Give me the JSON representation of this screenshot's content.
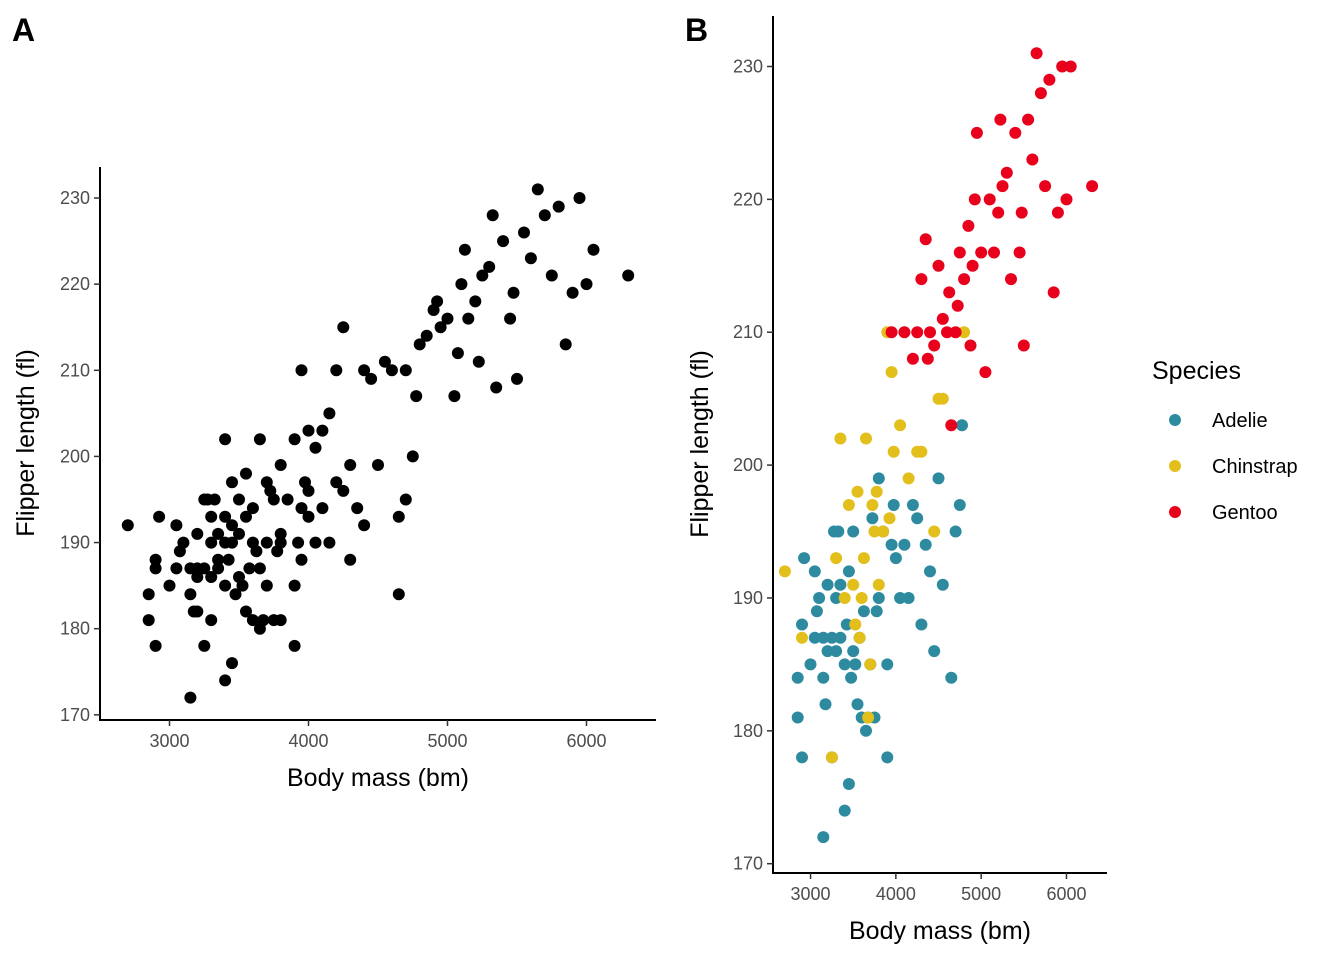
{
  "chart_data": [
    {
      "panel": "A",
      "type": "scatter",
      "xlabel": "Body mass (bm)",
      "ylabel": "Flipper length (fl)",
      "xlim": [
        2500,
        6500
      ],
      "ylim": [
        169.4,
        233.6
      ],
      "xticks": [
        3000,
        4000,
        5000,
        6000
      ],
      "yticks": [
        170,
        180,
        190,
        200,
        210,
        220,
        230
      ],
      "grid": false,
      "color": "#000000",
      "points": [
        [
          2700,
          192
        ],
        [
          2850,
          184
        ],
        [
          2850,
          181
        ],
        [
          2900,
          187
        ],
        [
          2900,
          188
        ],
        [
          2900,
          178
        ],
        [
          2925,
          193
        ],
        [
          3000,
          185
        ],
        [
          3050,
          192
        ],
        [
          3050,
          187
        ],
        [
          3075,
          189
        ],
        [
          3100,
          190
        ],
        [
          3150,
          187
        ],
        [
          3150,
          184
        ],
        [
          3150,
          172
        ],
        [
          3175,
          182
        ],
        [
          3200,
          187
        ],
        [
          3200,
          186
        ],
        [
          3200,
          191
        ],
        [
          3200,
          182
        ],
        [
          3250,
          187
        ],
        [
          3250,
          178
        ],
        [
          3250,
          195
        ],
        [
          3275,
          195
        ],
        [
          3300,
          186
        ],
        [
          3300,
          190
        ],
        [
          3300,
          181
        ],
        [
          3300,
          193
        ],
        [
          3325,
          195
        ],
        [
          3350,
          187
        ],
        [
          3350,
          191
        ],
        [
          3350,
          188
        ],
        [
          3400,
          185
        ],
        [
          3400,
          190
        ],
        [
          3400,
          202
        ],
        [
          3400,
          174
        ],
        [
          3400,
          193
        ],
        [
          3425,
          188
        ],
        [
          3450,
          190
        ],
        [
          3450,
          176
        ],
        [
          3450,
          192
        ],
        [
          3450,
          197
        ],
        [
          3475,
          184
        ],
        [
          3500,
          191
        ],
        [
          3500,
          186
        ],
        [
          3500,
          195
        ],
        [
          3525,
          185
        ],
        [
          3550,
          182
        ],
        [
          3550,
          198
        ],
        [
          3550,
          193
        ],
        [
          3575,
          187
        ],
        [
          3600,
          181
        ],
        [
          3600,
          190
        ],
        [
          3600,
          194
        ],
        [
          3625,
          189
        ],
        [
          3650,
          180
        ],
        [
          3650,
          187
        ],
        [
          3650,
          202
        ],
        [
          3675,
          181
        ],
        [
          3700,
          185
        ],
        [
          3700,
          190
        ],
        [
          3700,
          197
        ],
        [
          3725,
          196
        ],
        [
          3750,
          181
        ],
        [
          3750,
          195
        ],
        [
          3775,
          189
        ],
        [
          3800,
          190
        ],
        [
          3800,
          199
        ],
        [
          3800,
          191
        ],
        [
          3800,
          181
        ],
        [
          3850,
          195
        ],
        [
          3900,
          178
        ],
        [
          3900,
          185
        ],
        [
          3900,
          202
        ],
        [
          3925,
          190
        ],
        [
          3950,
          194
        ],
        [
          3950,
          188
        ],
        [
          3950,
          210
        ],
        [
          3975,
          197
        ],
        [
          4000,
          193
        ],
        [
          4000,
          203
        ],
        [
          4000,
          196
        ],
        [
          4050,
          201
        ],
        [
          4050,
          190
        ],
        [
          4100,
          194
        ],
        [
          4100,
          203
        ],
        [
          4150,
          190
        ],
        [
          4150,
          205
        ],
        [
          4200,
          197
        ],
        [
          4200,
          210
        ],
        [
          4250,
          196
        ],
        [
          4250,
          215
        ],
        [
          4300,
          188
        ],
        [
          4300,
          199
        ],
        [
          4350,
          194
        ],
        [
          4400,
          210
        ],
        [
          4400,
          192
        ],
        [
          4450,
          209
        ],
        [
          4500,
          199
        ],
        [
          4550,
          211
        ],
        [
          4600,
          210
        ],
        [
          4650,
          184
        ],
        [
          4650,
          193
        ],
        [
          4700,
          210
        ],
        [
          4700,
          195
        ],
        [
          4750,
          200
        ],
        [
          4800,
          213
        ],
        [
          4850,
          214
        ],
        [
          4900,
          217
        ],
        [
          4950,
          215
        ],
        [
          5000,
          216
        ],
        [
          5050,
          207
        ],
        [
          5100,
          220
        ],
        [
          5150,
          216
        ],
        [
          5200,
          218
        ],
        [
          5250,
          221
        ],
        [
          5300,
          222
        ],
        [
          5350,
          208
        ],
        [
          5400,
          225
        ],
        [
          5450,
          216
        ],
        [
          5500,
          209
        ],
        [
          5550,
          226
        ],
        [
          5600,
          223
        ],
        [
          5650,
          231
        ],
        [
          5700,
          228
        ],
        [
          5750,
          221
        ],
        [
          5800,
          229
        ],
        [
          5850,
          213
        ],
        [
          5900,
          219
        ],
        [
          5950,
          230
        ],
        [
          6000,
          220
        ],
        [
          6050,
          224
        ],
        [
          6300,
          221
        ],
        [
          4775,
          207
        ],
        [
          4925,
          218
        ],
        [
          5075,
          212
        ],
        [
          5125,
          224
        ],
        [
          5225,
          211
        ],
        [
          5325,
          228
        ],
        [
          5475,
          219
        ]
      ]
    },
    {
      "panel": "B",
      "type": "scatter",
      "xlabel": "Body mass (bm)",
      "ylabel": "Flipper length (fl)",
      "xlim": [
        2560,
        6475
      ],
      "ylim": [
        169.3,
        233.8
      ],
      "xticks": [
        3000,
        4000,
        5000,
        6000
      ],
      "yticks": [
        170,
        180,
        190,
        200,
        210,
        220,
        230
      ],
      "grid": false,
      "legend": {
        "title": "Species",
        "placement": "right",
        "entries": [
          {
            "name": "Adelie",
            "color": "#2E8B9F"
          },
          {
            "name": "Chinstrap",
            "color": "#E3BF1B"
          },
          {
            "name": "Gentoo",
            "color": "#E8001C"
          }
        ]
      },
      "series": [
        {
          "name": "Adelie",
          "color": "#2E8B9F",
          "points": [
            [
              2850,
              184
            ],
            [
              2850,
              181
            ],
            [
              2900,
              188
            ],
            [
              2900,
              178
            ],
            [
              2925,
              193
            ],
            [
              3000,
              185
            ],
            [
              3050,
              192
            ],
            [
              3050,
              187
            ],
            [
              3075,
              189
            ],
            [
              3100,
              190
            ],
            [
              3150,
              187
            ],
            [
              3150,
              184
            ],
            [
              3150,
              172
            ],
            [
              3175,
              182
            ],
            [
              3200,
              186
            ],
            [
              3200,
              191
            ],
            [
              3250,
              187
            ],
            [
              3250,
              178
            ],
            [
              3275,
              195
            ],
            [
              3300,
              186
            ],
            [
              3300,
              190
            ],
            [
              3325,
              195
            ],
            [
              3350,
              187
            ],
            [
              3350,
              191
            ],
            [
              3400,
              185
            ],
            [
              3400,
              174
            ],
            [
              3425,
              188
            ],
            [
              3450,
              176
            ],
            [
              3450,
              192
            ],
            [
              3475,
              184
            ],
            [
              3500,
              186
            ],
            [
              3500,
              195
            ],
            [
              3525,
              185
            ],
            [
              3550,
              182
            ],
            [
              3575,
              187
            ],
            [
              3600,
              181
            ],
            [
              3625,
              189
            ],
            [
              3650,
              180
            ],
            [
              3675,
              181
            ],
            [
              3700,
              185
            ],
            [
              3725,
              196
            ],
            [
              3750,
              181
            ],
            [
              3775,
              189
            ],
            [
              3800,
              190
            ],
            [
              3800,
              199
            ],
            [
              3850,
              195
            ],
            [
              3900,
              178
            ],
            [
              3900,
              185
            ],
            [
              3950,
              194
            ],
            [
              3975,
              197
            ],
            [
              4000,
              193
            ],
            [
              4050,
              190
            ],
            [
              4100,
              194
            ],
            [
              4150,
              190
            ],
            [
              4200,
              197
            ],
            [
              4250,
              196
            ],
            [
              4300,
              188
            ],
            [
              4350,
              194
            ],
            [
              4400,
              192
            ],
            [
              4450,
              186
            ],
            [
              4500,
              199
            ],
            [
              4550,
              191
            ],
            [
              4650,
              184
            ],
            [
              4700,
              195
            ],
            [
              4750,
              197
            ],
            [
              4775,
              203
            ]
          ]
        },
        {
          "name": "Chinstrap",
          "color": "#E3BF1B",
          "points": [
            [
              2700,
              192
            ],
            [
              2900,
              187
            ],
            [
              3250,
              178
            ],
            [
              3300,
              193
            ],
            [
              3350,
              202
            ],
            [
              3400,
              190
            ],
            [
              3450,
              197
            ],
            [
              3500,
              191
            ],
            [
              3525,
              188
            ],
            [
              3550,
              198
            ],
            [
              3575,
              187
            ],
            [
              3600,
              190
            ],
            [
              3625,
              193
            ],
            [
              3650,
              202
            ],
            [
              3675,
              181
            ],
            [
              3700,
              185
            ],
            [
              3725,
              197
            ],
            [
              3750,
              195
            ],
            [
              3775,
              198
            ],
            [
              3800,
              191
            ],
            [
              3850,
              195
            ],
            [
              3900,
              210
            ],
            [
              3925,
              196
            ],
            [
              3950,
              207
            ],
            [
              3975,
              201
            ],
            [
              4050,
              203
            ],
            [
              4150,
              199
            ],
            [
              4250,
              201
            ],
            [
              4300,
              201
            ],
            [
              4450,
              195
            ],
            [
              4500,
              205
            ],
            [
              4550,
              205
            ],
            [
              4800,
              210
            ]
          ]
        },
        {
          "name": "Gentoo",
          "color": "#E8001C",
          "points": [
            [
              3950,
              210
            ],
            [
              4100,
              210
            ],
            [
              4200,
              208
            ],
            [
              4250,
              210
            ],
            [
              4300,
              214
            ],
            [
              4350,
              217
            ],
            [
              4375,
              208
            ],
            [
              4400,
              210
            ],
            [
              4450,
              209
            ],
            [
              4500,
              215
            ],
            [
              4550,
              211
            ],
            [
              4600,
              210
            ],
            [
              4625,
              213
            ],
            [
              4650,
              203
            ],
            [
              4700,
              210
            ],
            [
              4725,
              212
            ],
            [
              4750,
              216
            ],
            [
              4800,
              214
            ],
            [
              4850,
              218
            ],
            [
              4875,
              209
            ],
            [
              4900,
              215
            ],
            [
              4925,
              220
            ],
            [
              4950,
              225
            ],
            [
              5000,
              216
            ],
            [
              5050,
              207
            ],
            [
              5100,
              220
            ],
            [
              5150,
              216
            ],
            [
              5200,
              219
            ],
            [
              5225,
              226
            ],
            [
              5250,
              221
            ],
            [
              5300,
              222
            ],
            [
              5350,
              214
            ],
            [
              5400,
              225
            ],
            [
              5450,
              216
            ],
            [
              5475,
              219
            ],
            [
              5500,
              209
            ],
            [
              5550,
              226
            ],
            [
              5600,
              223
            ],
            [
              5650,
              231
            ],
            [
              5700,
              228
            ],
            [
              5750,
              221
            ],
            [
              5800,
              229
            ],
            [
              5850,
              213
            ],
            [
              5900,
              219
            ],
            [
              5950,
              230
            ],
            [
              6000,
              220
            ],
            [
              6050,
              230
            ],
            [
              6300,
              221
            ]
          ]
        }
      ]
    }
  ]
}
